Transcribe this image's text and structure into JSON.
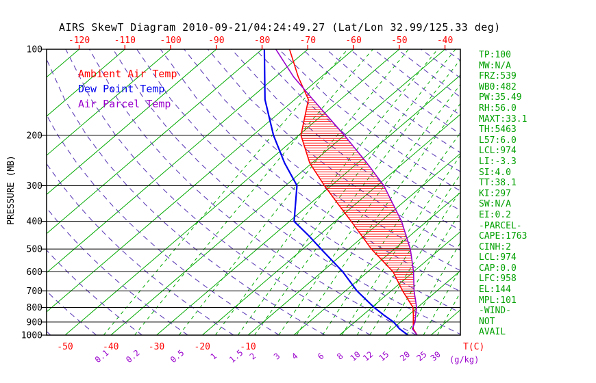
{
  "chart_data": {
    "type": "skewt",
    "title": "AIRS SkewT Diagram 2010-09-21/04:24:49.27 (Lat/Lon 32.99/125.33 deg)",
    "pressure_axis": {
      "label": "PRESSURE (MB)",
      "ticks": [
        100,
        200,
        300,
        400,
        500,
        600,
        700,
        800,
        900,
        1000
      ],
      "top": 100,
      "bottom": 1000
    },
    "temp_axis": {
      "top_ticks_c": [
        -120,
        -110,
        -100,
        -90,
        -80,
        -70,
        -60,
        -50,
        -40
      ],
      "bottom_ticks_c": [
        -50,
        -40,
        -30,
        -20,
        -10
      ],
      "unit_label": "T(C)",
      "isotherm_step_c": 10,
      "color": "#ff0000"
    },
    "mixing_ratio_axis": {
      "ticks_gkg": [
        0.1,
        0.2,
        0.5,
        1,
        1.5,
        2,
        3,
        4,
        6,
        8,
        10,
        12,
        15,
        20,
        25,
        30
      ],
      "unit_label": "(g/kg)",
      "color": "#9900cc"
    },
    "background": {
      "isotherm_color": "#00aa00",
      "mixing_ratio_color": "#00aa00",
      "dry_adiabat_color": "#6040b8",
      "dry_adiabat_theta_k": {
        "min": 220,
        "max": 460,
        "step": 10
      },
      "pressure_line_color": "#000000"
    },
    "series": [
      {
        "name": "Ambient Air Temp",
        "color": "#ff0000",
        "pressure_mb": [
          1000,
          950,
          900,
          850,
          800,
          700,
          600,
          500,
          400,
          350,
          300,
          250,
          200,
          150,
          125,
          100
        ],
        "temp_c": [
          27.0,
          24.5,
          22.8,
          21.0,
          19.0,
          12.5,
          5.5,
          -5.0,
          -16.5,
          -23.5,
          -31.5,
          -40.5,
          -49.5,
          -57.0,
          -65.0,
          -74.0
        ]
      },
      {
        "name": "Dew Point Temp",
        "color": "#0000ee",
        "pressure_mb": [
          1000,
          950,
          900,
          850,
          800,
          700,
          600,
          500,
          450,
          400,
          300,
          250,
          200,
          150,
          100
        ],
        "temp_c": [
          25.0,
          21.5,
          18.5,
          14.5,
          10.5,
          2.5,
          -5.5,
          -16.0,
          -22.0,
          -29.0,
          -37.5,
          -46.0,
          -55.5,
          -66.5,
          -79.5
        ]
      },
      {
        "name": "Air Parcel Temp",
        "color": "#9900cc",
        "pressure_mb": [
          1000,
          950,
          900,
          850,
          800,
          700,
          600,
          500,
          400,
          300,
          250,
          200,
          150,
          125,
          100
        ],
        "temp_c": [
          27.0,
          24.3,
          23.2,
          21.5,
          19.8,
          15.0,
          10.0,
          3.5,
          -5.5,
          -18.5,
          -28.0,
          -40.0,
          -56.0,
          -66.0,
          -77.0
        ]
      }
    ],
    "cape_hatch": {
      "from_mb": 958,
      "to_mb": 144,
      "color": "#ff0000"
    }
  },
  "stats_panel": {
    "color": "#00a000",
    "lines": [
      "TP:100",
      "MW:N/A",
      "FRZ:539",
      "WB0:482",
      "PW:35.49",
      "RH:56.0",
      "MAXT:33.1",
      "TH:5463",
      "L57:6.0",
      "LCL:974",
      "LI:-3.3",
      "SI:4.0",
      "TT:38.1",
      "KI:297",
      "SW:N/A",
      "EI:0.2",
      "-PARCEL-",
      "CAPE:1763",
      "CINH:2",
      "LCL:974",
      "CAP:0.0",
      "LFC:958",
      "EL:144",
      "MPL:101",
      "-WIND-",
      "NOT",
      "AVAIL"
    ]
  }
}
